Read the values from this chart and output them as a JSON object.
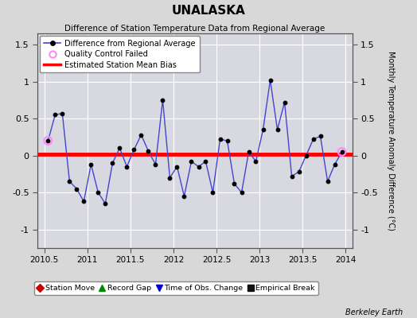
{
  "title": "UNALASKA",
  "subtitle": "Difference of Station Temperature Data from Regional Average",
  "ylabel_right": "Monthly Temperature Anomaly Difference (°C)",
  "bias_value": 0.02,
  "xlim": [
    2010.42,
    2014.08
  ],
  "ylim": [
    -1.25,
    1.65
  ],
  "yticks": [
    -1.0,
    -0.5,
    0.0,
    0.5,
    1.0,
    1.5
  ],
  "yticklabels": [
    "-1",
    "-0.5",
    "0",
    "0.5",
    "1",
    "1.5"
  ],
  "xticks": [
    2010.5,
    2011.0,
    2011.5,
    2012.0,
    2012.5,
    2013.0,
    2013.5,
    2014.0
  ],
  "xticklabels": [
    "2010.5",
    "2011",
    "2011.5",
    "2012",
    "2012.5",
    "2013",
    "2013.5",
    "2014"
  ],
  "background_color": "#d8d8d8",
  "plot_bg_color": "#d8d8e0",
  "grid_color": "#ffffff",
  "line_color": "#4444cc",
  "bias_color": "#ff0000",
  "marker_color": "#000000",
  "qc_fail_color": "#ff88ff",
  "watermark": "Berkeley Earth",
  "times": [
    2010.542,
    2010.625,
    2010.708,
    2010.792,
    2010.875,
    2010.958,
    2011.042,
    2011.125,
    2011.208,
    2011.292,
    2011.375,
    2011.458,
    2011.542,
    2011.625,
    2011.708,
    2011.792,
    2011.875,
    2011.958,
    2012.042,
    2012.125,
    2012.208,
    2012.292,
    2012.375,
    2012.458,
    2012.542,
    2012.625,
    2012.708,
    2012.792,
    2012.875,
    2012.958,
    2013.042,
    2013.125,
    2013.208,
    2013.292,
    2013.375,
    2013.458,
    2013.542,
    2013.625,
    2013.708,
    2013.792,
    2013.875,
    2013.958
  ],
  "values": [
    0.2,
    0.55,
    0.57,
    -0.35,
    -0.45,
    -0.62,
    -0.12,
    -0.5,
    -0.65,
    -0.1,
    0.1,
    -0.15,
    0.08,
    0.28,
    0.06,
    -0.12,
    0.75,
    -0.3,
    -0.15,
    -0.55,
    -0.08,
    -0.15,
    -0.08,
    -0.5,
    0.22,
    0.2,
    -0.38,
    -0.5,
    0.05,
    -0.08,
    0.35,
    1.02,
    0.35,
    0.72,
    -0.28,
    -0.22,
    0.0,
    0.22,
    0.26,
    -0.35,
    -0.12,
    0.05
  ],
  "qc_fail_indices": [
    0,
    41
  ],
  "legend1_entries": [
    {
      "label": "Difference from Regional Average",
      "color": "#4444cc",
      "type": "line_dot"
    },
    {
      "label": "Quality Control Failed",
      "color": "#ff88ff",
      "type": "circle_open"
    },
    {
      "label": "Estimated Station Mean Bias",
      "color": "#ff0000",
      "type": "line"
    }
  ],
  "legend2_entries": [
    {
      "label": "Station Move",
      "color": "#cc0000",
      "marker": "D"
    },
    {
      "label": "Record Gap",
      "color": "#008800",
      "marker": "^"
    },
    {
      "label": "Time of Obs. Change",
      "color": "#0000cc",
      "marker": "v"
    },
    {
      "label": "Empirical Break",
      "color": "#111111",
      "marker": "s"
    }
  ]
}
